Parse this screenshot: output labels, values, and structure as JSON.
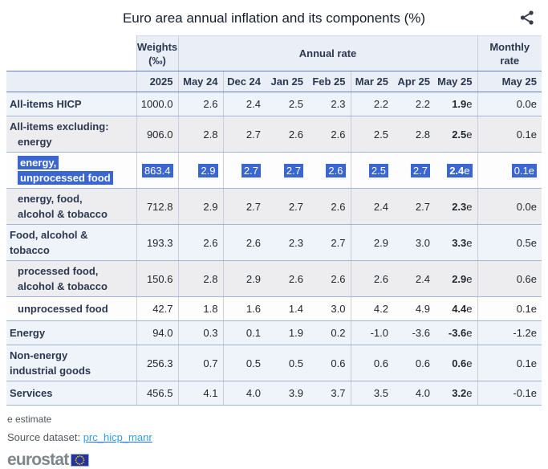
{
  "title": "Euro area annual inflation and its components (%)",
  "icons": {
    "share": "share-nodes",
    "eu_flag": "eu-flag"
  },
  "colors": {
    "selection_highlight": "#3A66D1",
    "header_bg": "#E9EEF7",
    "row_blue": "#EFF3FA",
    "row_gray": "#EDEDEF",
    "row_white": "#FDFDFE",
    "link_blue": "#2F9FF2",
    "border_strong": "#6480B5",
    "border_row": "#A3B5D6",
    "logo_gray": "#7E868D",
    "flag_blue": "#24339E",
    "star_yellow": "#FFCC00"
  },
  "chart_data": {
    "type": "table",
    "title": "Euro area annual inflation and its components (%)",
    "headers": {
      "weights_line1": "Weights",
      "weights_line2": "(‰)",
      "annual_rate": "Annual rate",
      "monthly_line1": "Monthly",
      "monthly_line2": "rate",
      "year": "2025",
      "months": [
        "May 24",
        "Dec 24",
        "Jan 25",
        "Feb 25",
        "Mar 25",
        "Apr 25",
        "May 25"
      ],
      "monthly_month": "May 25"
    },
    "rows": [
      {
        "label_lines": [
          {
            "text": "All-items HICP",
            "indented": false
          }
        ],
        "weight": "1000.0",
        "annual": [
          "2.6",
          "2.4",
          "2.5",
          "2.3",
          "2.2",
          "2.2",
          "1.9e"
        ],
        "monthly": "0.0e",
        "shade": "blue",
        "selected": false
      },
      {
        "label_lines": [
          {
            "text": "All-items excluding:",
            "indented": false
          },
          {
            "text": "energy",
            "indented": true
          }
        ],
        "weight": "906.0",
        "annual": [
          "2.8",
          "2.7",
          "2.6",
          "2.6",
          "2.5",
          "2.8",
          "2.5e"
        ],
        "monthly": "0.1e",
        "shade": "gray",
        "selected": false
      },
      {
        "label_lines": [
          {
            "text": "energy,",
            "indented": true
          },
          {
            "text": "unprocessed food",
            "indented": true
          }
        ],
        "weight": "863.4",
        "annual": [
          "2.9",
          "2.7",
          "2.7",
          "2.6",
          "2.5",
          "2.7",
          "2.4e"
        ],
        "monthly": "0.1e",
        "shade": "white",
        "selected": true
      },
      {
        "label_lines": [
          {
            "text": "energy, food,",
            "indented": true
          },
          {
            "text": "alcohol & tobacco",
            "indented": true
          }
        ],
        "weight": "712.8",
        "annual": [
          "2.9",
          "2.7",
          "2.7",
          "2.6",
          "2.4",
          "2.7",
          "2.3e"
        ],
        "monthly": "0.0e",
        "shade": "gray",
        "selected": false
      },
      {
        "label_lines": [
          {
            "text": "Food, alcohol &",
            "indented": false
          },
          {
            "text": "tobacco",
            "indented": false
          }
        ],
        "weight": "193.3",
        "annual": [
          "2.6",
          "2.6",
          "2.3",
          "2.7",
          "2.9",
          "3.0",
          "3.3e"
        ],
        "monthly": "0.5e",
        "shade": "blue",
        "selected": false
      },
      {
        "label_lines": [
          {
            "text": "processed food,",
            "indented": true
          },
          {
            "text": "alcohol & tobacco",
            "indented": true
          }
        ],
        "weight": "150.6",
        "annual": [
          "2.8",
          "2.9",
          "2.6",
          "2.6",
          "2.6",
          "2.4",
          "2.9e"
        ],
        "monthly": "0.6e",
        "shade": "gray",
        "selected": false
      },
      {
        "label_lines": [
          {
            "text": "unprocessed food",
            "indented": true
          }
        ],
        "weight": "42.7",
        "annual": [
          "1.8",
          "1.6",
          "1.4",
          "3.0",
          "4.2",
          "4.9",
          "4.4e"
        ],
        "monthly": "0.1e",
        "shade": "white",
        "selected": false
      },
      {
        "label_lines": [
          {
            "text": "Energy",
            "indented": false
          }
        ],
        "weight": "94.0",
        "annual": [
          "0.3",
          "0.1",
          "1.9",
          "0.2",
          "-1.0",
          "-3.6",
          "-3.6e"
        ],
        "monthly": "-1.2e",
        "shade": "blue",
        "selected": false
      },
      {
        "label_lines": [
          {
            "text": "Non-energy",
            "indented": false
          },
          {
            "text": "industrial goods",
            "indented": false
          }
        ],
        "weight": "256.3",
        "annual": [
          "0.7",
          "0.5",
          "0.5",
          "0.6",
          "0.6",
          "0.6",
          "0.6e"
        ],
        "monthly": "0.1e",
        "shade": "blue",
        "selected": false
      },
      {
        "label_lines": [
          {
            "text": "Services",
            "indented": false
          }
        ],
        "weight": "456.5",
        "annual": [
          "4.1",
          "4.0",
          "3.9",
          "3.7",
          "3.5",
          "4.0",
          "3.2e"
        ],
        "monthly": "-0.1e",
        "shade": "blue",
        "selected": false
      }
    ]
  },
  "footer": {
    "estimate_note": "e estimate",
    "source_label": "Source dataset:",
    "source_link_text": "prc_hicp_manr",
    "logo_text": "eurostat"
  }
}
